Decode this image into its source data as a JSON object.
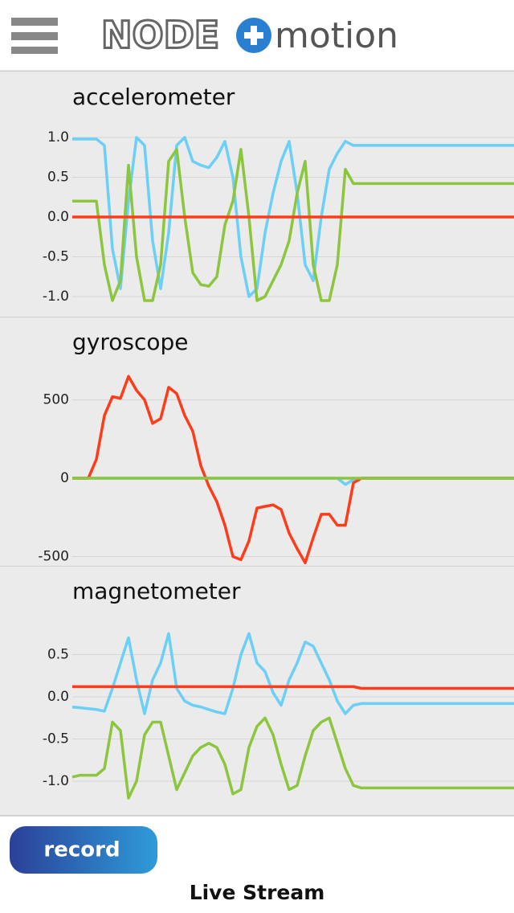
{
  "header": {
    "logo_left": "NODE",
    "logo_right": "motion"
  },
  "chart_data": [
    {
      "type": "line",
      "title": "accelerometer",
      "ylim": [
        -1.2,
        1.2
      ],
      "yticks": [
        {
          "value": 1,
          "label": "1.0"
        },
        0.5,
        {
          "value": 0,
          "label": "0.0"
        },
        -0.5,
        {
          "value": -1,
          "label": "-1.0"
        }
      ],
      "grid": true,
      "series": [
        {
          "color": "#6ccff6",
          "values": [
            0.98,
            0.98,
            0.98,
            0.98,
            0.9,
            -0.4,
            -0.9,
            0.2,
            1.0,
            0.9,
            -0.3,
            -0.9,
            -0.2,
            0.9,
            1.0,
            0.7,
            0.65,
            0.62,
            0.75,
            0.95,
            0.5,
            -0.5,
            -1.0,
            -0.9,
            -0.2,
            0.3,
            0.7,
            0.95,
            0.3,
            -0.6,
            -0.8,
            0.0,
            0.6,
            0.8,
            0.95,
            0.9,
            0.9,
            0.9,
            0.9,
            0.9,
            0.9,
            0.9,
            0.9,
            0.9,
            0.9,
            0.9,
            0.9,
            0.9,
            0.9,
            0.9,
            0.9,
            0.9,
            0.9,
            0.9,
            0.9,
            0.9
          ]
        },
        {
          "color": "#8cc63f",
          "values": [
            0.2,
            0.2,
            0.2,
            0.2,
            -0.6,
            -1.05,
            -0.8,
            0.65,
            -0.5,
            -1.05,
            -1.05,
            -0.6,
            0.7,
            0.85,
            0.0,
            -0.7,
            -0.85,
            -0.87,
            -0.75,
            -0.1,
            0.2,
            0.85,
            0.0,
            -1.05,
            -1.0,
            -0.8,
            -0.6,
            -0.3,
            0.3,
            0.7,
            -0.6,
            -1.05,
            -1.05,
            -0.6,
            0.6,
            0.42,
            0.42,
            0.42,
            0.42,
            0.42,
            0.42,
            0.42,
            0.42,
            0.42,
            0.42,
            0.42,
            0.42,
            0.42,
            0.42,
            0.42,
            0.42,
            0.42,
            0.42,
            0.42,
            0.42,
            0.42
          ]
        },
        {
          "color": "#ff3c1a",
          "values": [
            0,
            0,
            0,
            0,
            0,
            0,
            0,
            0,
            0,
            0,
            0,
            0,
            0,
            0,
            0,
            0,
            0,
            0,
            0,
            0,
            0,
            0,
            0,
            0,
            0,
            0,
            0,
            0,
            0,
            0,
            0,
            0,
            0,
            0,
            0,
            0,
            0,
            0,
            0,
            0,
            0,
            0,
            0,
            0,
            0,
            0,
            0,
            0,
            0,
            0,
            0,
            0,
            0,
            0,
            0,
            0
          ]
        }
      ]
    },
    {
      "type": "line",
      "title": "gyroscope",
      "ylim": [
        -560,
        720
      ],
      "yticks": [
        500,
        0,
        -500
      ],
      "grid": true,
      "series": [
        {
          "color": "#6ccff6",
          "values": [
            0,
            0,
            0,
            0,
            0,
            0,
            0,
            0,
            0,
            0,
            0,
            0,
            0,
            0,
            0,
            0,
            0,
            0,
            0,
            0,
            0,
            0,
            0,
            0,
            0,
            0,
            0,
            0,
            0,
            0,
            0,
            0,
            0,
            0,
            -40,
            -10,
            0,
            0,
            0,
            0,
            0,
            0,
            0,
            0,
            0,
            0,
            0,
            0,
            0,
            0,
            0,
            0,
            0,
            0,
            0,
            0
          ]
        },
        {
          "color": "#ff3c1a",
          "values": [
            0,
            0,
            0,
            120,
            400,
            520,
            510,
            650,
            560,
            500,
            350,
            380,
            580,
            540,
            400,
            300,
            80,
            -50,
            -150,
            -300,
            -500,
            -520,
            -400,
            -190,
            -180,
            -170,
            -200,
            -350,
            -450,
            -540,
            -380,
            -230,
            -230,
            -300,
            -300,
            -30,
            0,
            0,
            0,
            0,
            0,
            0,
            0,
            0,
            0,
            0,
            0,
            0,
            0,
            0,
            0,
            0,
            0,
            0,
            0,
            0
          ]
        },
        {
          "color": "#8cc63f",
          "values": [
            0,
            0,
            0,
            0,
            0,
            0,
            0,
            0,
            0,
            0,
            0,
            0,
            0,
            0,
            0,
            0,
            0,
            0,
            0,
            0,
            0,
            0,
            0,
            0,
            0,
            0,
            0,
            0,
            0,
            0,
            0,
            0,
            0,
            0,
            0,
            0,
            0,
            0,
            0,
            0,
            0,
            0,
            0,
            0,
            0,
            0,
            0,
            0,
            0,
            0,
            0,
            0,
            0,
            0,
            0,
            0
          ]
        }
      ]
    },
    {
      "type": "line",
      "title": "magnetometer",
      "ylim": [
        -1.35,
        0.9
      ],
      "yticks": [
        0.5,
        {
          "value": 0,
          "label": "0.0"
        },
        -0.5,
        {
          "value": -1,
          "label": "-1.0"
        }
      ],
      "grid": true,
      "series": [
        {
          "color": "#6ccff6",
          "values": [
            -0.12,
            -0.13,
            -0.14,
            -0.15,
            -0.17,
            0.1,
            0.4,
            0.7,
            0.2,
            -0.2,
            0.2,
            0.4,
            0.75,
            0.1,
            -0.05,
            -0.1,
            -0.12,
            -0.15,
            -0.18,
            -0.2,
            0.1,
            0.5,
            0.75,
            0.4,
            0.3,
            0.05,
            -0.1,
            0.2,
            0.4,
            0.65,
            0.6,
            0.4,
            0.2,
            -0.05,
            -0.2,
            -0.1,
            -0.08,
            -0.08,
            -0.08,
            -0.08,
            -0.08,
            -0.08,
            -0.08,
            -0.08,
            -0.08,
            -0.08,
            -0.08,
            -0.08,
            -0.08,
            -0.08,
            -0.08,
            -0.08,
            -0.08,
            -0.08,
            -0.08,
            -0.08
          ]
        },
        {
          "color": "#8cc63f",
          "values": [
            -0.95,
            -0.93,
            -0.93,
            -0.93,
            -0.85,
            -0.3,
            -0.4,
            -1.2,
            -1.0,
            -0.45,
            -0.3,
            -0.3,
            -0.7,
            -1.1,
            -0.9,
            -0.7,
            -0.6,
            -0.55,
            -0.6,
            -0.8,
            -1.15,
            -1.1,
            -0.6,
            -0.35,
            -0.25,
            -0.45,
            -0.8,
            -1.1,
            -1.05,
            -0.7,
            -0.4,
            -0.3,
            -0.25,
            -0.55,
            -0.85,
            -1.05,
            -1.08,
            -1.08,
            -1.08,
            -1.08,
            -1.08,
            -1.08,
            -1.08,
            -1.08,
            -1.08,
            -1.08,
            -1.08,
            -1.08,
            -1.08,
            -1.08,
            -1.08,
            -1.08,
            -1.08,
            -1.08,
            -1.08,
            -1.08
          ]
        },
        {
          "color": "#ff3c1a",
          "values": [
            0.12,
            0.12,
            0.12,
            0.12,
            0.12,
            0.12,
            0.12,
            0.12,
            0.12,
            0.12,
            0.12,
            0.12,
            0.12,
            0.12,
            0.12,
            0.12,
            0.12,
            0.12,
            0.12,
            0.12,
            0.12,
            0.12,
            0.12,
            0.12,
            0.12,
            0.12,
            0.12,
            0.12,
            0.12,
            0.12,
            0.12,
            0.12,
            0.12,
            0.12,
            0.12,
            0.12,
            0.1,
            0.1,
            0.1,
            0.1,
            0.1,
            0.1,
            0.1,
            0.1,
            0.1,
            0.1,
            0.1,
            0.1,
            0.1,
            0.1,
            0.1,
            0.1,
            0.1,
            0.1,
            0.1,
            0.1
          ]
        }
      ]
    }
  ],
  "controls": {
    "record": "record",
    "mode": "Live Stream"
  }
}
